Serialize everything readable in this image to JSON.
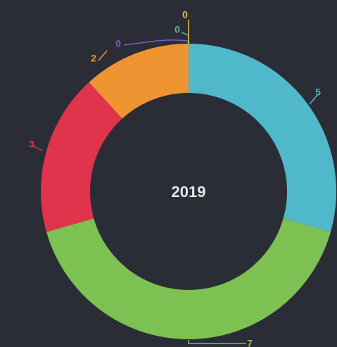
{
  "chart_data": {
    "type": "donut",
    "center_label": "2019",
    "values": [
      5,
      7,
      3,
      2,
      0,
      0,
      0
    ],
    "colors": [
      "#4fb8ca",
      "#7cc152",
      "#e0344c",
      "#ee9433",
      "#7b5fc0",
      "#5cb89c",
      "#e8b84a"
    ]
  }
}
